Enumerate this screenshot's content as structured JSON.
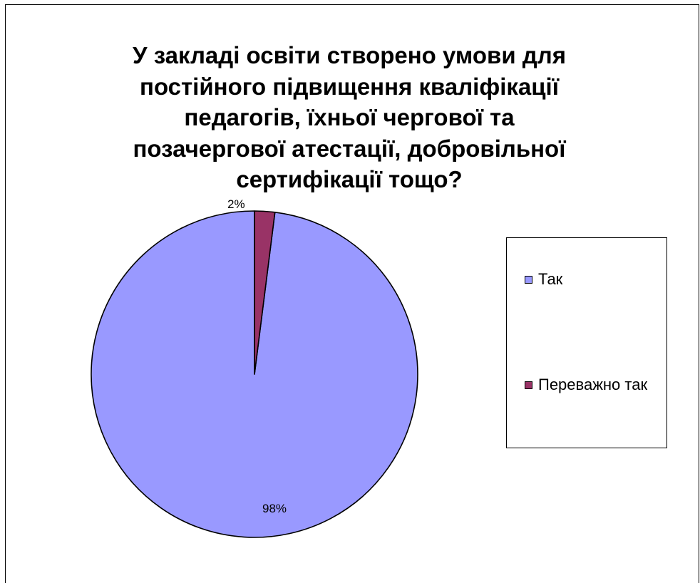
{
  "chart_data": {
    "type": "pie",
    "title": "У закладі освіти створено умови для постійного підвищення кваліфікації педагогів, їхньої чергової та позачергової атестації, добровільної сертифікації тощо?",
    "title_lines": [
      "У закладі освіти створено умови для",
      "постійного підвищення кваліфікації",
      "педагогів, їхньої чергової та",
      "позачергової атестації, добровільної",
      "сертифікації тощо?"
    ],
    "legend_position": "right",
    "slices": [
      {
        "label": "Так",
        "value": 98,
        "display": "98%",
        "color": "#9999FF"
      },
      {
        "label": "Переважно так",
        "value": 2,
        "display": "2%",
        "color": "#993366"
      }
    ]
  }
}
